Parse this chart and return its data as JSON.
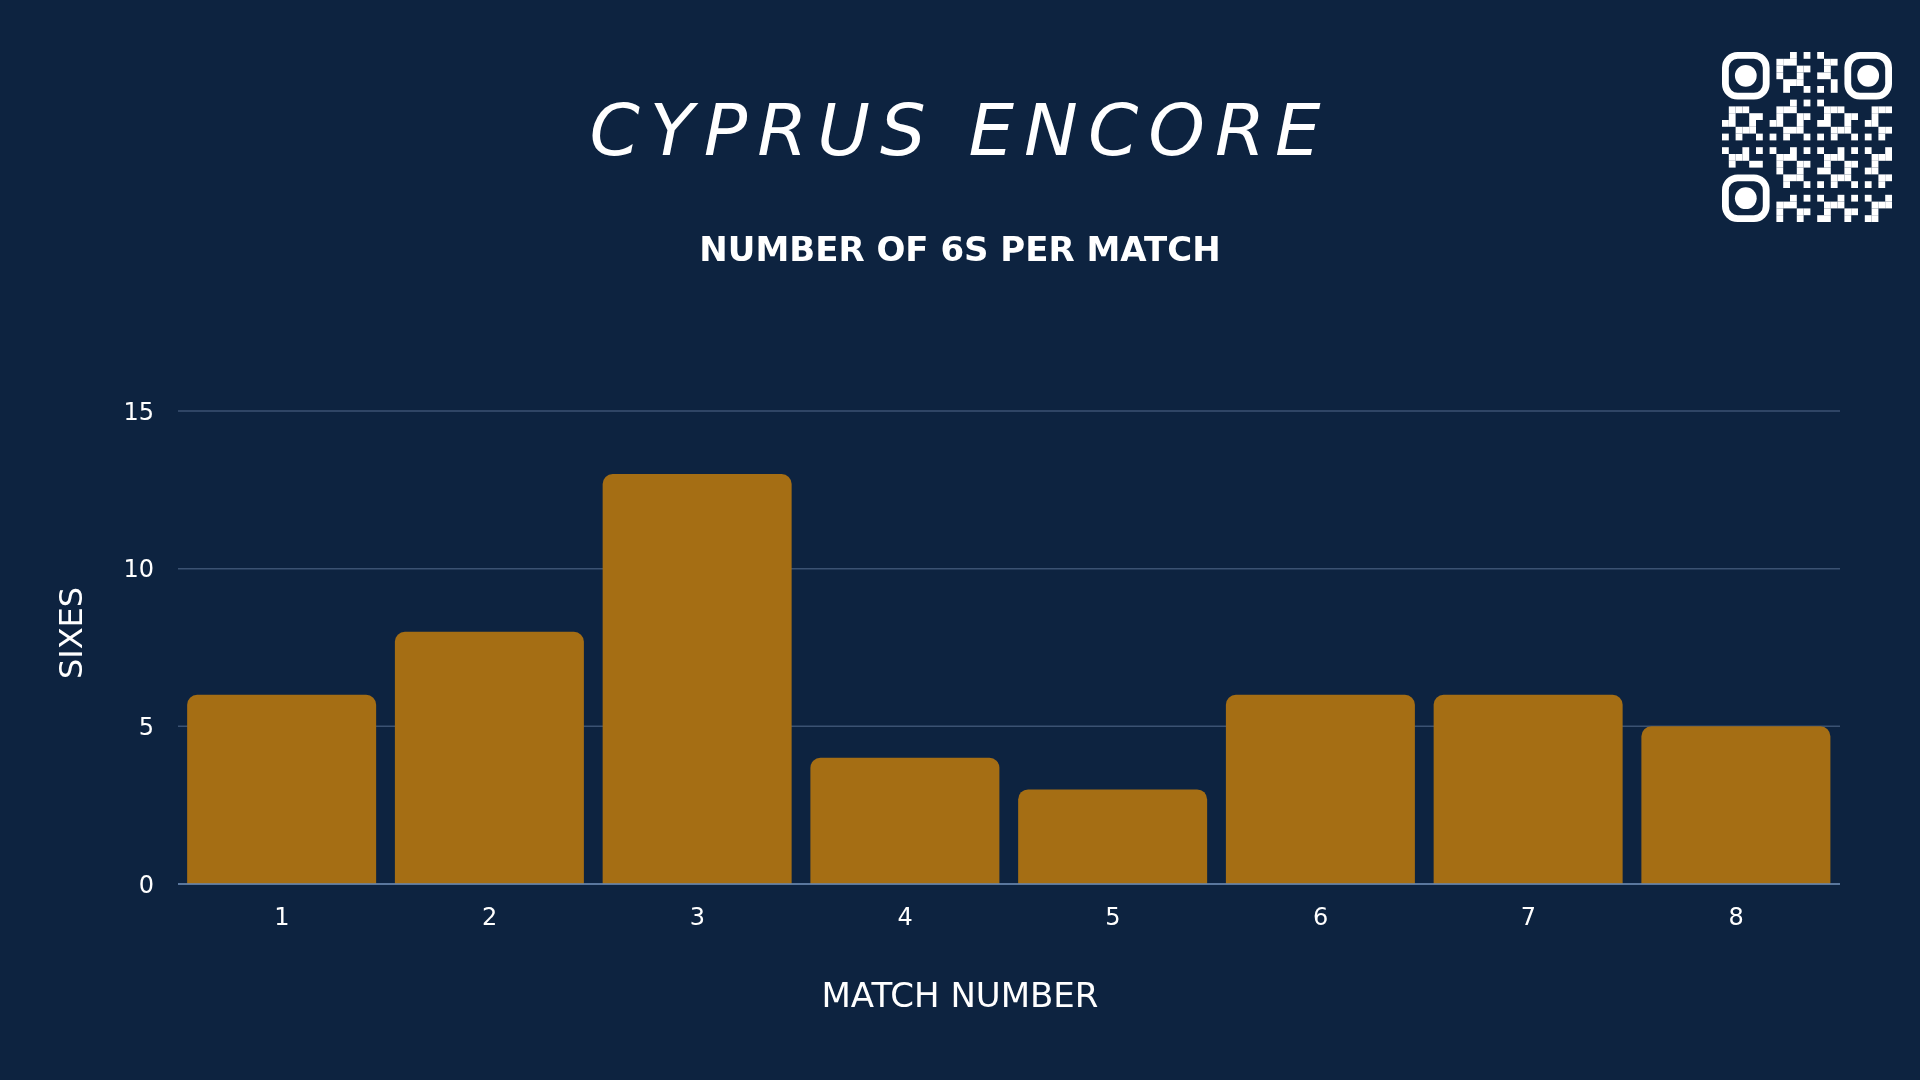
{
  "chart_data": {
    "type": "bar",
    "title": "CYPRUS ENCORE",
    "subtitle": "NUMBER OF 6S PER MATCH",
    "xlabel": "MATCH NUMBER",
    "ylabel": "SIXES",
    "categories": [
      "1",
      "2",
      "3",
      "4",
      "5",
      "6",
      "7",
      "8"
    ],
    "values": [
      6,
      8,
      13,
      4,
      3,
      6,
      6,
      5
    ],
    "color": "#a56e14",
    "ylim": [
      0,
      15
    ],
    "yticks": [
      0,
      5,
      10,
      15
    ],
    "grid": "y"
  }
}
